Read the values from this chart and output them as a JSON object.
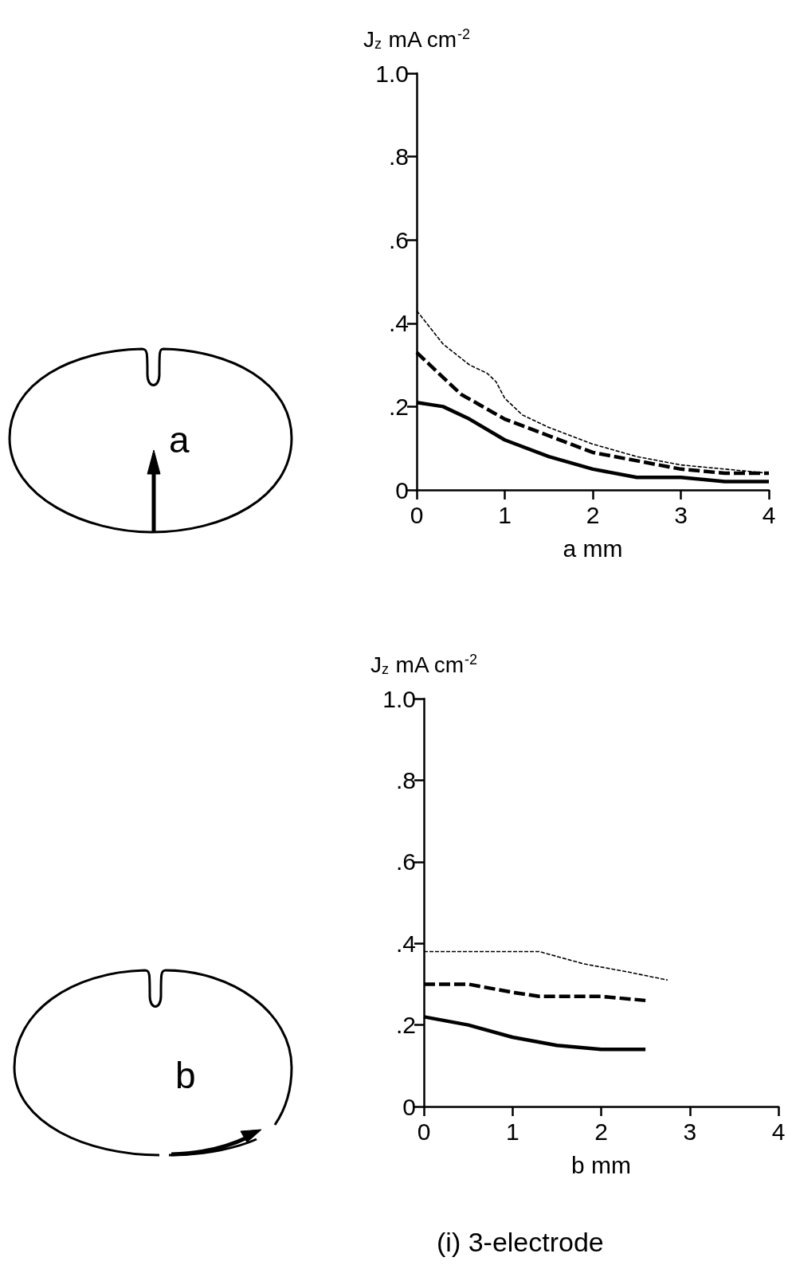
{
  "chart_data": [
    {
      "type": "line",
      "xlabel": "a mm",
      "ylabel": "J$_{z}$ mA cm$^{-2}$",
      "xlim": [
        0,
        4
      ],
      "xticks": [
        0,
        1,
        2,
        3,
        4
      ],
      "ylim": [
        0,
        1
      ],
      "yticks": [
        0,
        {
          "value": 0.2,
          "label": ".2"
        },
        {
          "value": 0.4,
          "label": ".4"
        },
        {
          "value": 0.6,
          "label": ".6"
        },
        {
          "value": 0.8,
          "label": ".8"
        },
        {
          "value": 1,
          "label": "1.0"
        }
      ],
      "grid": false,
      "marker": "none",
      "annotations": [
        "a"
      ],
      "series": [
        {
          "color": "#000000",
          "line_style": "dashed",
          "x": [
            0,
            0.3,
            0.6,
            0.8,
            0.9,
            1.0,
            1.2,
            1.5,
            2,
            2.5,
            3,
            3.5,
            4
          ],
          "values": [
            0.43,
            0.35,
            0.3,
            0.28,
            0.26,
            0.22,
            0.18,
            0.15,
            0.11,
            0.08,
            0.06,
            0.05,
            0.04
          ]
        },
        {
          "color": "#000000",
          "line_style": "dashed",
          "x": [
            0,
            0.15,
            0.5,
            1,
            1.5,
            2,
            2.5,
            3,
            3.5,
            4
          ],
          "values": [
            0.33,
            0.3,
            0.23,
            0.17,
            0.13,
            0.09,
            0.07,
            0.05,
            0.04,
            0.04
          ]
        },
        {
          "color": "#000000",
          "line_style": "solid",
          "x": [
            0,
            0.3,
            0.6,
            1,
            1.5,
            2,
            2.5,
            3,
            3.5,
            4
          ],
          "values": [
            0.21,
            0.2,
            0.17,
            0.12,
            0.08,
            0.05,
            0.03,
            0.03,
            0.02,
            0.02
          ]
        }
      ]
    },
    {
      "type": "line",
      "xlabel": "b mm",
      "ylabel": "J$_{z}$ mA cm$^{-2}$",
      "xlim": [
        0,
        4
      ],
      "xticks": [
        0,
        1,
        2,
        3,
        4
      ],
      "ylim": [
        0,
        1
      ],
      "yticks": [
        0,
        {
          "value": 0.2,
          "label": ".2"
        },
        {
          "value": 0.4,
          "label": ".4"
        },
        {
          "value": 0.6,
          "label": ".6"
        },
        {
          "value": 0.8,
          "label": ".8"
        },
        {
          "value": 1,
          "label": "1.0"
        }
      ],
      "grid": false,
      "marker": "none",
      "annotations": [
        "b",
        "(i) 3-electrode"
      ],
      "series": [
        {
          "color": "#000000",
          "line_style": "dashed",
          "x": [
            0,
            0.5,
            1,
            1.3,
            1.8,
            2.3,
            2.75
          ],
          "values": [
            0.38,
            0.38,
            0.38,
            0.38,
            0.35,
            0.33,
            0.31
          ]
        },
        {
          "color": "#000000",
          "line_style": "dashed",
          "x": [
            0,
            0.5,
            1,
            1.3,
            1.6,
            2,
            2.5
          ],
          "values": [
            0.3,
            0.3,
            0.28,
            0.27,
            0.27,
            0.27,
            0.26
          ]
        },
        {
          "color": "#000000",
          "line_style": "solid",
          "x": [
            0,
            0.5,
            1,
            1.5,
            2,
            2.5
          ],
          "values": [
            0.22,
            0.2,
            0.17,
            0.15,
            0.14,
            0.14
          ]
        }
      ]
    }
  ]
}
